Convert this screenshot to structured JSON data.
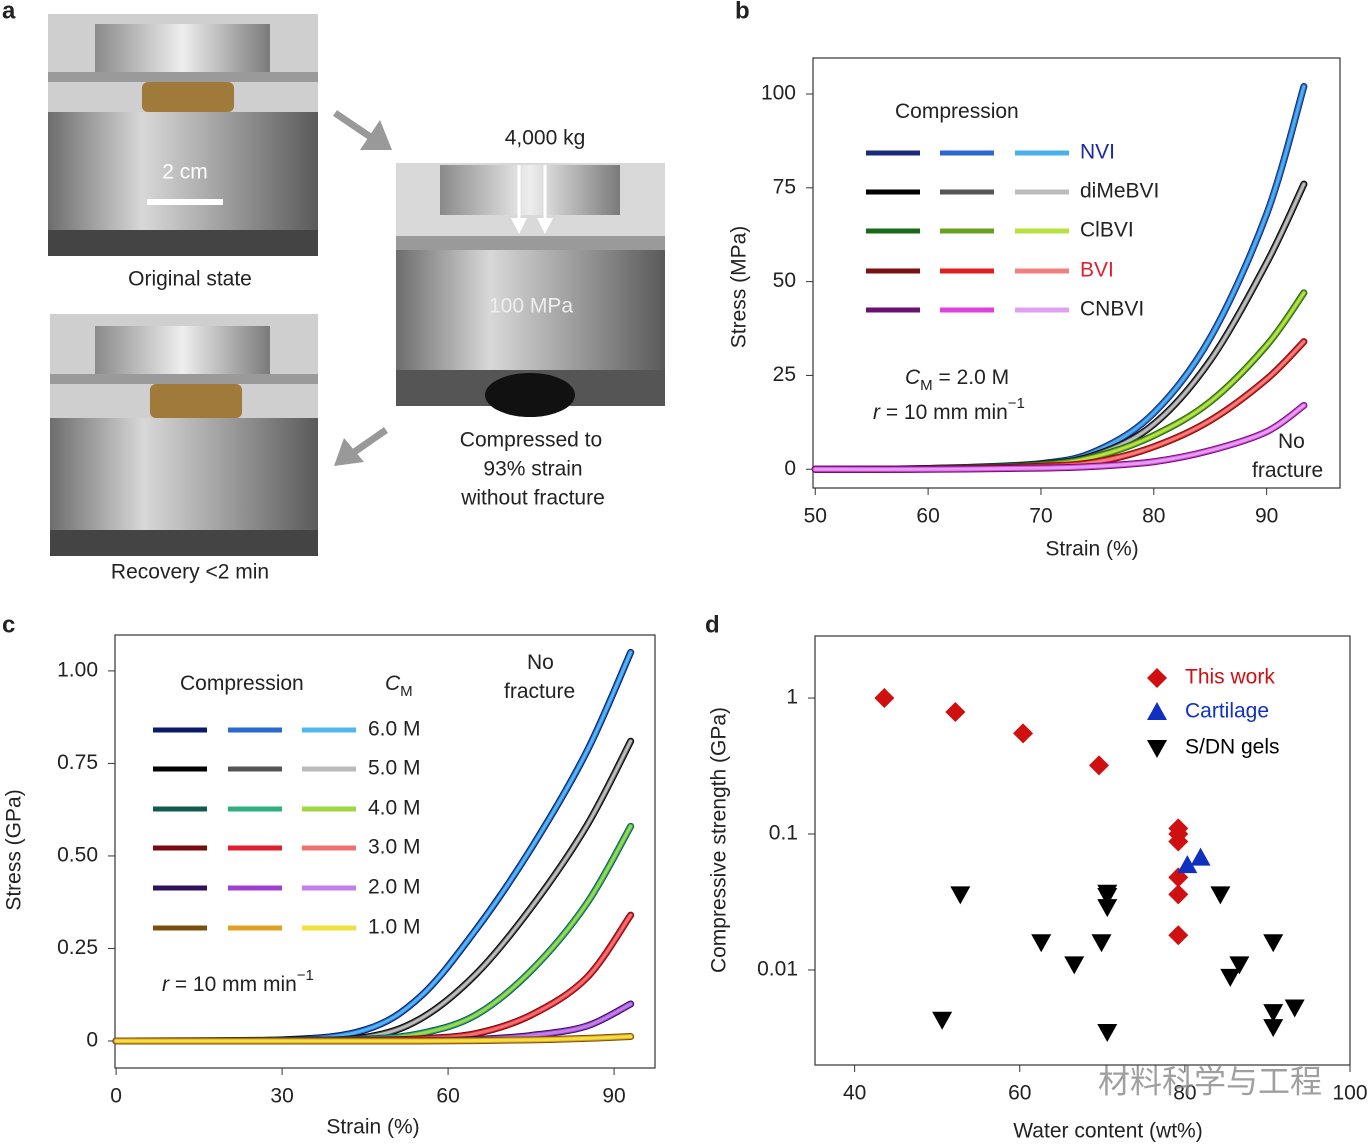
{
  "panel_a": {
    "label": "a",
    "scale_bar": "2 cm",
    "top_caption": "Original state",
    "load": "4,000 kg",
    "pressure": "100 MPa",
    "middle_caption": [
      "Compressed to",
      "93% strain",
      "without fracture"
    ],
    "bottom_caption": "Recovery <2 min"
  },
  "chart_data": [
    {
      "type": "line",
      "label": "b",
      "xlabel": "Strain (%)",
      "ylabel": "Stress (MPa)",
      "xlim": [
        49.8,
        96.5
      ],
      "ylim": [
        -5,
        109.6
      ],
      "xticks": [
        50,
        60,
        70,
        80,
        90
      ],
      "yticks": [
        0,
        25,
        50,
        75,
        100
      ],
      "legend_headers": [
        {
          "parts": [
            {
              "text": "Compression"
            }
          ]
        }
      ],
      "annotations": [
        {
          "parts": [
            {
              "text": "C",
              "style": "italic"
            },
            {
              "text": "M",
              "style": "sub"
            },
            {
              "text": " = 2.0 M"
            }
          ]
        },
        {
          "parts": [
            {
              "text": "r",
              "style": "italic"
            },
            {
              "text": " = 10 mm min"
            },
            {
              "text": "−1",
              "style": "sup"
            }
          ]
        },
        {
          "parts": [
            {
              "text": "No"
            }
          ]
        },
        {
          "parts": [
            {
              "text": "fracture"
            }
          ]
        }
      ],
      "x": [
        50,
        60,
        70,
        75,
        80,
        85,
        90,
        93.3
      ],
      "series": [
        {
          "name": "NVI",
          "label_color": "#1a2aa0",
          "colors": [
            "#1a2a7a",
            "#2a6ad0",
            "#4ab0e8"
          ],
          "values": [
            0,
            0.2,
            1.5,
            5,
            15,
            35,
            68,
            102
          ]
        },
        {
          "name": "diMeBVI",
          "label_color": "#222222",
          "colors": [
            "#000000",
            "#555555",
            "#bbbbbb"
          ],
          "values": [
            0,
            0.2,
            1.3,
            4,
            12,
            29,
            55,
            76
          ]
        },
        {
          "name": "ClBVI",
          "label_color": "#222222",
          "colors": [
            "#1a6a1a",
            "#6aa020",
            "#b8e040"
          ],
          "values": [
            0,
            0.1,
            1.2,
            3.5,
            9,
            18,
            33,
            47
          ]
        },
        {
          "name": "BVI",
          "label_color": "#e02030",
          "colors": [
            "#7a1010",
            "#e02020",
            "#f08080"
          ],
          "values": [
            0,
            0.1,
            0.8,
            2,
            6,
            13,
            24,
            34
          ]
        },
        {
          "name": "CNBVI",
          "label_color": "#222222",
          "colors": [
            "#6a1070",
            "#e040e0",
            "#e0a0f0"
          ],
          "values": [
            0,
            0,
            0.3,
            0.8,
            2,
            5,
            10,
            17
          ]
        }
      ]
    },
    {
      "type": "line",
      "label": "c",
      "xlabel": "Strain (%)",
      "ylabel": "Stress (GPa)",
      "xlim": [
        -0.2,
        97.4
      ],
      "ylim": [
        -0.073,
        1.097
      ],
      "xticks": [
        0,
        30,
        60,
        90
      ],
      "yticks": [
        0,
        0.25,
        {
          "value": 0.5,
          "label": "0.50"
        },
        0.75,
        {
          "value": 1,
          "label": "1.00"
        }
      ],
      "legend_headers": [
        {
          "parts": [
            {
              "text": "Compression"
            }
          ]
        },
        {
          "parts": [
            {
              "text": "C",
              "style": "italic"
            },
            {
              "text": "M",
              "style": "sub"
            }
          ]
        }
      ],
      "annotations": [
        {
          "parts": [
            {
              "text": "No"
            }
          ]
        },
        {
          "parts": [
            {
              "text": "fracture"
            }
          ]
        },
        {
          "parts": [
            {
              "text": "r",
              "style": "italic"
            },
            {
              "text": " = 10 mm min"
            },
            {
              "text": "−1",
              "style": "sup"
            }
          ]
        }
      ],
      "x": [
        0,
        30,
        45,
        55,
        65,
        75,
        85,
        93
      ],
      "series": [
        {
          "name": "6.0 M",
          "label_color": "#222222",
          "colors": [
            "#0a1a6a",
            "#2a6ad0",
            "#50b8f0"
          ],
          "values": [
            0,
            0.003,
            0.03,
            0.12,
            0.3,
            0.52,
            0.78,
            1.05
          ]
        },
        {
          "name": "5.0 M",
          "label_color": "#222222",
          "colors": [
            "#000000",
            "#555555",
            "#bbbbbb"
          ],
          "values": [
            0,
            0.002,
            0.01,
            0.06,
            0.18,
            0.36,
            0.58,
            0.81
          ]
        },
        {
          "name": "4.0 M",
          "label_color": "#222222",
          "colors": [
            "#105a50",
            "#30b080",
            "#a0d840"
          ],
          "values": [
            0,
            0.001,
            0.005,
            0.02,
            0.07,
            0.19,
            0.37,
            0.58
          ]
        },
        {
          "name": "3.0 M",
          "label_color": "#222222",
          "colors": [
            "#7a0a10",
            "#e02030",
            "#f07070"
          ],
          "values": [
            0,
            0,
            0.002,
            0.006,
            0.02,
            0.07,
            0.17,
            0.34
          ]
        },
        {
          "name": "2.0 M",
          "label_color": "#222222",
          "colors": [
            "#30105a",
            "#a040d0",
            "#c080e8"
          ],
          "values": [
            0,
            0,
            0,
            0.001,
            0.004,
            0.015,
            0.04,
            0.1
          ]
        },
        {
          "name": "1.0 M",
          "label_color": "#222222",
          "colors": [
            "#7a5010",
            "#e0a020",
            "#f0e040"
          ],
          "values": [
            0,
            0,
            0,
            0,
            0.001,
            0.003,
            0.007,
            0.012
          ]
        }
      ]
    },
    {
      "type": "scatter",
      "label": "d",
      "xlabel": "Water content (wt%)",
      "ylabel": "Compressive strength (GPa)",
      "xlim": [
        35.2,
        100
      ],
      "ylim": [
        0.002,
        2.86
      ],
      "yscale": "log",
      "xticks": [
        40,
        60,
        80,
        100
      ],
      "yticks": [
        0.01,
        0.1,
        1
      ],
      "series": [
        {
          "name": "This work",
          "color": "#d01010",
          "marker": "diamond",
          "x": [
            43.6,
            52.2,
            60.4,
            69.6,
            79.2,
            79.2,
            79.2,
            79.2,
            79.2,
            79.2
          ],
          "values": [
            1.0,
            0.79,
            0.55,
            0.32,
            0.1,
            0.11,
            0.088,
            0.048,
            0.036,
            0.018
          ]
        },
        {
          "name": "Cartilage",
          "color": "#1030c0",
          "marker": "triangle-up",
          "x": [
            80.3,
            81.9
          ],
          "values": [
            0.059,
            0.067
          ]
        },
        {
          "name": "S/DN gels",
          "color": "#000000",
          "marker": "triangle-down",
          "x": [
            52.8,
            50.6,
            62.6,
            66.6,
            69.9,
            70.6,
            70.6,
            70.6,
            70.6,
            84.3,
            85.5,
            86.6,
            90.7,
            90.7,
            90.7,
            93.3
          ],
          "values": [
            0.036,
            0.0043,
            0.016,
            0.011,
            0.016,
            0.037,
            0.035,
            0.029,
            0.0035,
            0.036,
            0.0089,
            0.011,
            0.016,
            0.0049,
            0.0038,
            0.0053
          ]
        }
      ]
    }
  ],
  "watermark": "材料科学与工程"
}
